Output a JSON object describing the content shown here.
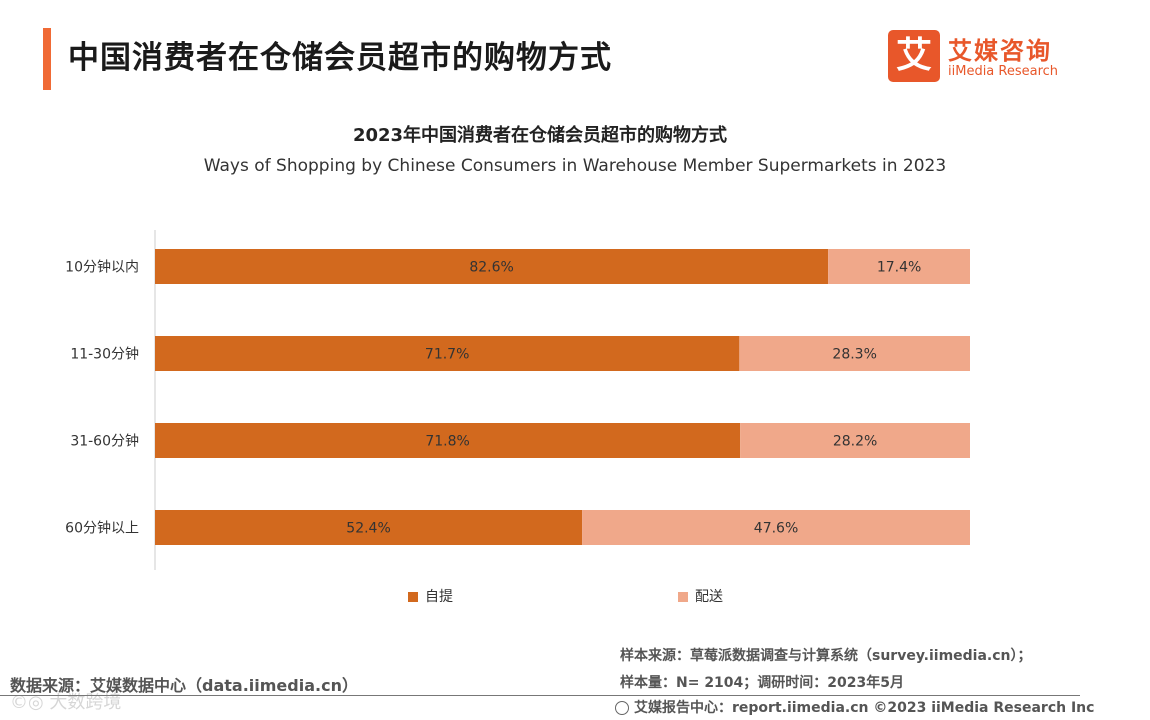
{
  "header": {
    "title": "中国消费者在仓储会员超市的购物方式",
    "logo_mark": "艾",
    "logo_cn": "艾媒咨询",
    "logo_en": "iiMedia Research"
  },
  "chart_data": {
    "type": "bar",
    "orientation": "horizontal",
    "stacked": true,
    "title": "2023年中国消费者在仓储会员超市的购物方式",
    "subtitle": "Ways of Shopping by Chinese Consumers in Warehouse Member Supermarkets in 2023",
    "categories": [
      "10分钟以内",
      "11-30分钟",
      "31-60分钟",
      "60分钟以上"
    ],
    "series": [
      {
        "name": "自提",
        "values": [
          82.6,
          71.7,
          71.8,
          52.4
        ],
        "labels": [
          "82.6%",
          "71.7%",
          "71.8%",
          "52.4%"
        ],
        "color": "#d2691e"
      },
      {
        "name": "配送",
        "values": [
          17.4,
          28.3,
          28.2,
          47.6
        ],
        "labels": [
          "17.4%",
          "28.3%",
          "28.2%",
          "47.6%"
        ],
        "color": "#f0a88a"
      }
    ],
    "xlim": [
      0,
      100
    ],
    "grid": false,
    "legend_position": "bottom"
  },
  "footer": {
    "source_left": "数据来源：艾媒数据中心（data.iimedia.cn）",
    "sample_source": "样本来源：草莓派数据调查与计算系统（survey.iimedia.cn）；",
    "sample_size": "样本量：N= 2104；调研时间：2023年5月",
    "report_center": "艾媒报告中心：report.iimedia.cn ©2023 iiMedia Research Inc",
    "watermark": "©◎ 大数跨境"
  }
}
